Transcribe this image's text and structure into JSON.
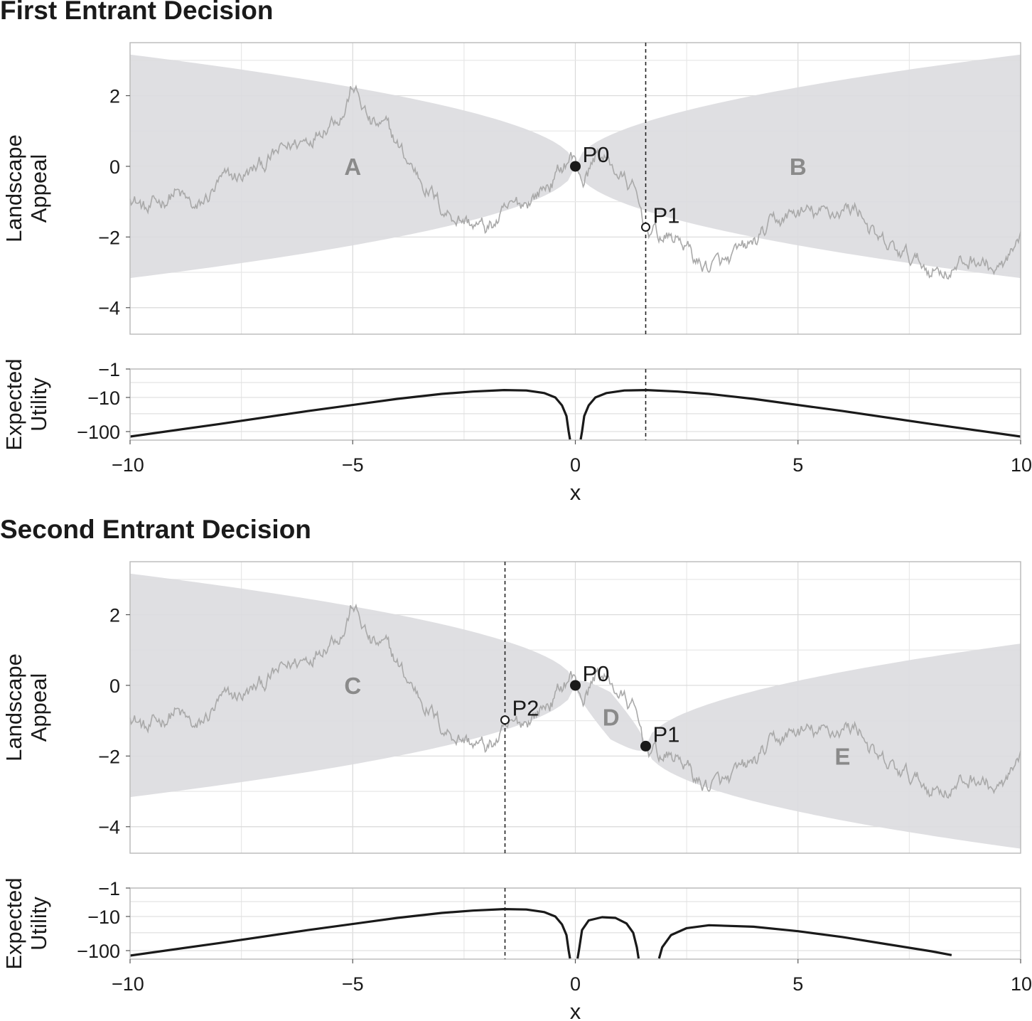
{
  "chart_data": [
    {
      "type": "area",
      "title": "First Entrant Decision",
      "panels": {
        "landscape": {
          "ylabel": [
            "Landscape",
            "Appeal"
          ],
          "xlim": [
            -10,
            10
          ],
          "ylim": [
            -4.75,
            3.5
          ],
          "yticks": [
            2,
            0,
            -2,
            -4
          ],
          "ytick_labels": [
            "2",
            "0",
            "−2",
            "−4"
          ],
          "grid": true,
          "decision_x": 1.58,
          "points": [
            {
              "label": "P0",
              "x": 0,
              "y": 0,
              "filled": true
            },
            {
              "label": "P1",
              "x": 1.58,
              "y": -1.72,
              "filled": false
            }
          ],
          "regions": [
            {
              "label": "A",
              "x": -5,
              "y": 0
            },
            {
              "label": "B",
              "x": 5,
              "y": 0
            }
          ],
          "bands": [
            {
              "from_x": -10,
              "to_x": 0,
              "center_start": 0,
              "center_slope": 0,
              "width": 1
            },
            {
              "from_x": 0,
              "to_x": 10,
              "center_start": 0,
              "center_slope": 0,
              "width": 1
            }
          ]
        },
        "utility": {
          "ylabel": [
            "Expected",
            "Utility"
          ],
          "yticks": [
            "−1",
            "−10",
            "−100"
          ],
          "scale": "log",
          "decision_x": 1.58,
          "curve_segments": [
            [
              [
                -10,
                -140
              ],
              [
                -8,
                -60
              ],
              [
                -6,
                -25
              ],
              [
                -4,
                -11
              ],
              [
                -3,
                -7.5
              ],
              [
                -2.3,
                -6.2
              ],
              [
                -1.6,
                -5.5
              ],
              [
                -1.1,
                -5.7
              ],
              [
                -0.7,
                -7
              ],
              [
                -0.45,
                -10
              ],
              [
                -0.3,
                -17
              ],
              [
                -0.2,
                -35
              ],
              [
                -0.15,
                -100
              ],
              [
                -0.12,
                -170
              ]
            ],
            [
              [
                0.12,
                -170
              ],
              [
                0.15,
                -100
              ],
              [
                0.2,
                -35
              ],
              [
                0.3,
                -17
              ],
              [
                0.45,
                -10
              ],
              [
                0.7,
                -7
              ],
              [
                1.1,
                -5.7
              ],
              [
                1.6,
                -5.5
              ],
              [
                2.3,
                -6.2
              ],
              [
                3,
                -7.5
              ],
              [
                4,
                -11
              ],
              [
                6,
                -25
              ],
              [
                8,
                -60
              ],
              [
                10,
                -140
              ]
            ]
          ]
        }
      },
      "xlabel": "x",
      "xticks": [
        -10,
        -5,
        0,
        5,
        10
      ],
      "xtick_labels": [
        "−10",
        "−5",
        "0",
        "5",
        "10"
      ]
    },
    {
      "type": "area",
      "title": "Second Entrant Decision",
      "panels": {
        "landscape": {
          "ylabel": [
            "Landscape",
            "Appeal"
          ],
          "xlim": [
            -10,
            10
          ],
          "ylim": [
            -4.75,
            3.5
          ],
          "yticks": [
            2,
            0,
            -2,
            -4
          ],
          "ytick_labels": [
            "2",
            "0",
            "−2",
            "−4"
          ],
          "grid": true,
          "decision_x": -1.58,
          "points": [
            {
              "label": "P0",
              "x": 0,
              "y": 0,
              "filled": true
            },
            {
              "label": "P1",
              "x": 1.58,
              "y": -1.72,
              "filled": true
            },
            {
              "label": "P2",
              "x": -1.58,
              "y": -0.98,
              "filled": false
            }
          ],
          "regions": [
            {
              "label": "C",
              "x": -5,
              "y": 0
            },
            {
              "label": "D",
              "x": 0.8,
              "y": -0.9
            },
            {
              "label": "E",
              "x": 6,
              "y": -2
            }
          ],
          "bands": [
            {
              "from_x": -10,
              "to_x": 0,
              "center_start": 0,
              "center_slope": 0,
              "width": 1
            },
            {
              "from_x": 0,
              "to_x": 1.58,
              "center_start": 0,
              "center_slope": -1.09,
              "width": 0.6
            },
            {
              "from_x": 1.58,
              "to_x": 10,
              "center_start": -1.72,
              "center_slope": 0,
              "width": 1
            }
          ]
        },
        "utility": {
          "ylabel": [
            "Expected",
            "Utility"
          ],
          "yticks": [
            "−1",
            "−10",
            "−100"
          ],
          "scale": "log",
          "decision_x": -1.58,
          "curve_segments": [
            [
              [
                -10,
                -140
              ],
              [
                -8,
                -60
              ],
              [
                -6,
                -25
              ],
              [
                -4,
                -11
              ],
              [
                -3,
                -7.5
              ],
              [
                -2.3,
                -6.2
              ],
              [
                -1.6,
                -5.5
              ],
              [
                -1.1,
                -5.7
              ],
              [
                -0.7,
                -7
              ],
              [
                -0.45,
                -10
              ],
              [
                -0.3,
                -17
              ],
              [
                -0.2,
                -35
              ],
              [
                -0.15,
                -100
              ],
              [
                -0.12,
                -170
              ]
            ],
            [
              [
                0.05,
                -170
              ],
              [
                0.08,
                -100
              ],
              [
                0.15,
                -25
              ],
              [
                0.3,
                -13
              ],
              [
                0.6,
                -10.5
              ],
              [
                0.9,
                -11
              ],
              [
                1.15,
                -16
              ],
              [
                1.3,
                -30
              ],
              [
                1.38,
                -80
              ],
              [
                1.42,
                -170
              ]
            ],
            [
              [
                1.88,
                -170
              ],
              [
                1.95,
                -80
              ],
              [
                2.15,
                -35
              ],
              [
                2.5,
                -22
              ],
              [
                3,
                -18
              ],
              [
                4,
                -20
              ],
              [
                5,
                -27
              ],
              [
                6,
                -40
              ],
              [
                7,
                -65
              ],
              [
                8,
                -105
              ],
              [
                8.45,
                -135
              ]
            ]
          ]
        }
      },
      "xlabel": "x",
      "xticks": [
        -10,
        -5,
        0,
        5,
        10
      ],
      "xtick_labels": [
        "−10",
        "−5",
        "0",
        "5",
        "10"
      ]
    }
  ]
}
